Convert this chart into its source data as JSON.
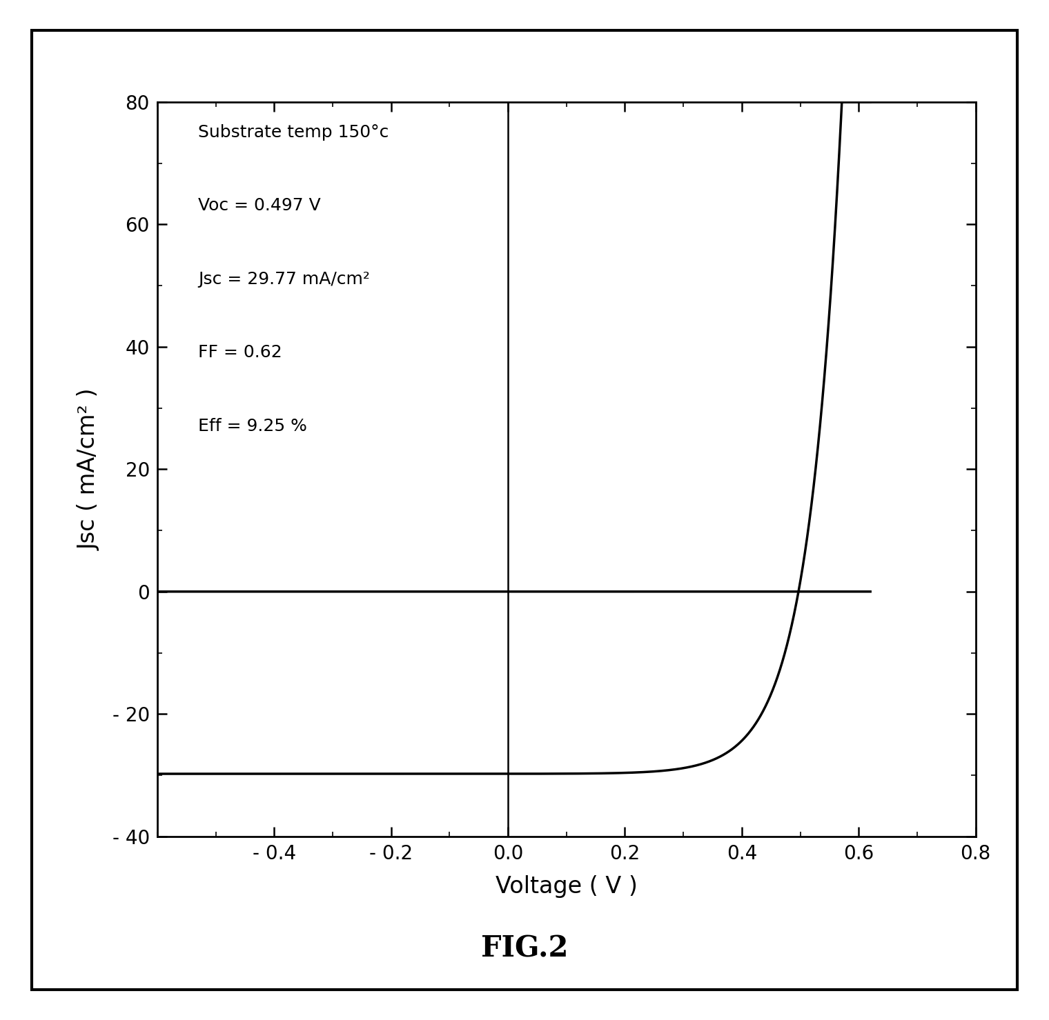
{
  "title": "FIG.2",
  "xlabel": "Voltage ( V )",
  "ylabel": "Jsc ( mA/cm² )",
  "xlim": [
    -0.6,
    0.8
  ],
  "ylim": [
    -40,
    80
  ],
  "xticks": [
    -0.4,
    -0.2,
    0.0,
    0.2,
    0.4,
    0.6,
    0.8
  ],
  "yticks": [
    -40,
    -20,
    0,
    20,
    40,
    60,
    80
  ],
  "annotation_lines": [
    "Substrate temp 150°c",
    "Voc = 0.497 V",
    "Jsc = 29.77 mA/cm²",
    "FF = 0.62",
    "Eff = 9.25 %"
  ],
  "Voc": 0.497,
  "Jsc": 29.77,
  "background_color": "#ffffff",
  "line_color": "#000000",
  "text_color": "#000000",
  "fontsize_labels": 24,
  "fontsize_ticks": 20,
  "fontsize_annotation": 18,
  "fontsize_title": 30,
  "outer_border_color": "#000000",
  "outer_border_linewidth": 3.0
}
